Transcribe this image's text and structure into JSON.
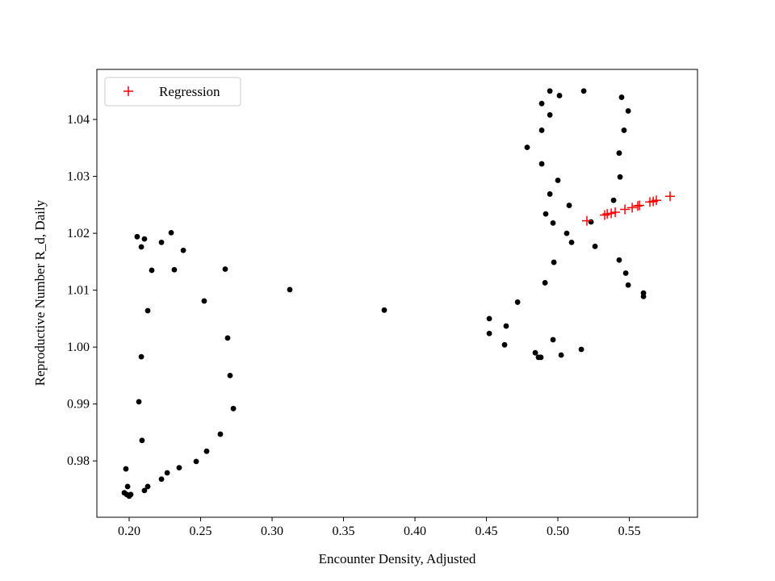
{
  "chart_data": {
    "type": "scatter",
    "title": "",
    "xlabel": "Encounter Density, Adjusted",
    "ylabel": "Reproductive Number R_d, Daily",
    "xlim": [
      0.1774,
      0.5977
    ],
    "ylim": [
      0.9701,
      1.0488
    ],
    "xticks": [
      0.2,
      0.25,
      0.3,
      0.35,
      0.4,
      0.45,
      0.5,
      0.55
    ],
    "xtick_labels": [
      "0.20",
      "0.25",
      "0.30",
      "0.35",
      "0.40",
      "0.45",
      "0.50",
      "0.55"
    ],
    "yticks": [
      0.98,
      0.99,
      1.0,
      1.01,
      1.02,
      1.03,
      1.04
    ],
    "ytick_labels": [
      "0.98",
      "0.99",
      "1.00",
      "1.01",
      "1.02",
      "1.03",
      "1.04"
    ],
    "grid": false,
    "legend_position": "top-left",
    "series": [
      {
        "marker": "dot",
        "color": "#000000",
        "points": [
          [
            0.2056,
            1.0194
          ],
          [
            0.2107,
            1.019
          ],
          [
            0.2085,
            1.0176
          ],
          [
            0.2294,
            1.0201
          ],
          [
            0.2226,
            1.0184
          ],
          [
            0.2379,
            1.017
          ],
          [
            0.2158,
            1.0135
          ],
          [
            0.2316,
            1.0136
          ],
          [
            0.2672,
            1.0137
          ],
          [
            0.2525,
            1.0081
          ],
          [
            0.213,
            1.0064
          ],
          [
            0.2689,
            1.0016
          ],
          [
            0.2085,
            0.9983
          ],
          [
            0.2706,
            0.995
          ],
          [
            0.2068,
            0.9904
          ],
          [
            0.2729,
            0.9892
          ],
          [
            0.209,
            0.9836
          ],
          [
            0.2638,
            0.9847
          ],
          [
            0.2542,
            0.9817
          ],
          [
            0.2469,
            0.9799
          ],
          [
            0.1977,
            0.9786
          ],
          [
            0.235,
            0.9788
          ],
          [
            0.2266,
            0.9779
          ],
          [
            0.2226,
            0.9768
          ],
          [
            0.213,
            0.9755
          ],
          [
            0.2107,
            0.9748
          ],
          [
            0.1989,
            0.9755
          ],
          [
            0.1966,
            0.9744
          ],
          [
            0.2,
            0.9738
          ],
          [
            0.1983,
            0.9741
          ],
          [
            0.2011,
            0.9741
          ],
          [
            0.3124,
            1.0101
          ],
          [
            0.3785,
            1.0065
          ],
          [
            0.4944,
            1.045
          ],
          [
            0.5011,
            1.0442
          ],
          [
            0.5181,
            1.045
          ],
          [
            0.5446,
            1.0439
          ],
          [
            0.4887,
            1.0428
          ],
          [
            0.4944,
            1.0408
          ],
          [
            0.5492,
            1.0415
          ],
          [
            0.4887,
            1.0381
          ],
          [
            0.5463,
            1.0381
          ],
          [
            0.4785,
            1.0351
          ],
          [
            0.5429,
            1.0341
          ],
          [
            0.4887,
            1.0322
          ],
          [
            0.5435,
            1.0299
          ],
          [
            0.5,
            1.0293
          ],
          [
            0.4944,
            1.0269
          ],
          [
            0.539,
            1.0258
          ],
          [
            0.5079,
            1.0249
          ],
          [
            0.4915,
            1.0234
          ],
          [
            0.4966,
            1.0218
          ],
          [
            0.5232,
            1.022
          ],
          [
            0.5062,
            1.02
          ],
          [
            0.5096,
            1.0184
          ],
          [
            0.526,
            1.0177
          ],
          [
            0.4972,
            1.0149
          ],
          [
            0.5429,
            1.0153
          ],
          [
            0.5475,
            1.013
          ],
          [
            0.491,
            1.0113
          ],
          [
            0.5492,
            1.0109
          ],
          [
            0.5599,
            1.0095
          ],
          [
            0.5599,
            1.0089
          ],
          [
            0.4718,
            1.0079
          ],
          [
            0.452,
            1.005
          ],
          [
            0.4638,
            1.0037
          ],
          [
            0.452,
            1.0024
          ],
          [
            0.4966,
            1.0013
          ],
          [
            0.4627,
            1.0004
          ],
          [
            0.5164,
            0.9996
          ],
          [
            0.4842,
            0.999
          ],
          [
            0.4864,
            0.9982
          ],
          [
            0.4881,
            0.9982
          ],
          [
            0.5023,
            0.9986
          ]
        ]
      },
      {
        "name": "Regression",
        "marker": "plus",
        "color": "#ff0000",
        "points": [
          [
            0.5203,
            1.0222
          ],
          [
            0.5328,
            1.0232
          ],
          [
            0.5345,
            1.0234
          ],
          [
            0.5373,
            1.0235
          ],
          [
            0.5401,
            1.0237
          ],
          [
            0.5469,
            1.0242
          ],
          [
            0.552,
            1.0245
          ],
          [
            0.5559,
            1.0248
          ],
          [
            0.5571,
            1.0249
          ],
          [
            0.5644,
            1.0255
          ],
          [
            0.5667,
            1.0256
          ],
          [
            0.5689,
            1.0258
          ],
          [
            0.5785,
            1.0265
          ]
        ]
      }
    ]
  }
}
